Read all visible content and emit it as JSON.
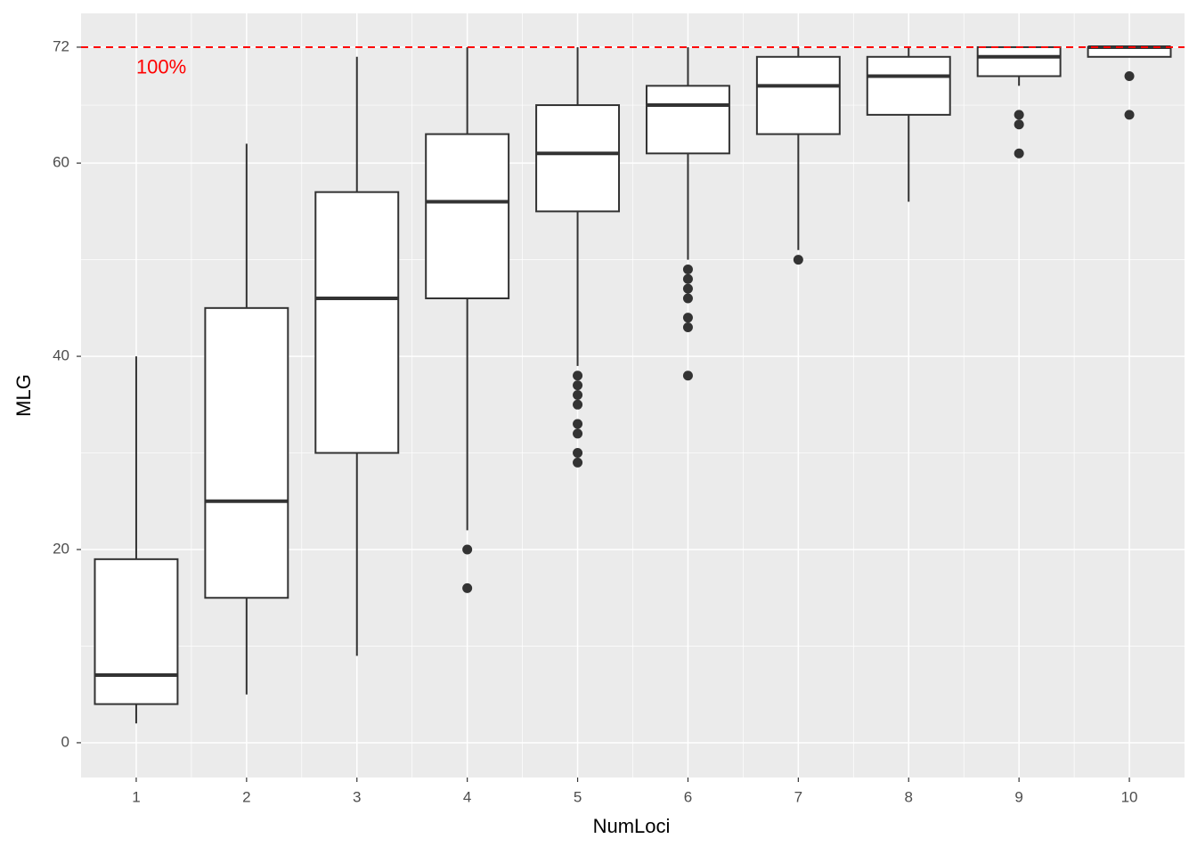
{
  "chart_data": {
    "type": "box",
    "x_label": "NumLoci",
    "y_label": "MLG",
    "categories": [
      "1",
      "2",
      "3",
      "4",
      "5",
      "6",
      "7",
      "8",
      "9",
      "10"
    ],
    "boxes": [
      {
        "low": 2,
        "q1": 4,
        "median": 7,
        "q3": 19,
        "high": 40,
        "outliers": []
      },
      {
        "low": 5,
        "q1": 15,
        "median": 25,
        "q3": 45,
        "high": 62,
        "outliers": []
      },
      {
        "low": 9,
        "q1": 30,
        "median": 46,
        "q3": 57,
        "high": 71,
        "outliers": []
      },
      {
        "low": 22,
        "q1": 46,
        "median": 56,
        "q3": 63,
        "high": 72,
        "outliers": [
          20,
          16
        ]
      },
      {
        "low": 39,
        "q1": 55,
        "median": 61,
        "q3": 66,
        "high": 72,
        "outliers": [
          38,
          37,
          36,
          35,
          33,
          32,
          30,
          29
        ]
      },
      {
        "low": 50,
        "q1": 61,
        "median": 66,
        "q3": 68,
        "high": 72,
        "outliers": [
          49,
          48,
          47,
          46,
          44,
          43,
          38
        ]
      },
      {
        "low": 51,
        "q1": 63,
        "median": 68,
        "q3": 71,
        "high": 72,
        "outliers": [
          50
        ]
      },
      {
        "low": 56,
        "q1": 65,
        "median": 69,
        "q3": 71,
        "high": 72,
        "outliers": []
      },
      {
        "low": 68,
        "q1": 69,
        "median": 71,
        "q3": 72,
        "high": 72,
        "outliers": [
          65,
          64,
          61
        ]
      },
      {
        "low": 71,
        "q1": 71,
        "median": 72,
        "q3": 72,
        "high": 72,
        "outliers": [
          69,
          65
        ]
      }
    ],
    "color": "#ffffff",
    "line_color": "#333333",
    "ylim": [
      -3.6,
      75.5
    ],
    "yticks": [
      0,
      20,
      40,
      60,
      72
    ],
    "grid": true,
    "hline": {
      "value": 72,
      "color": "#ff0000",
      "dashed": true
    },
    "annotation": {
      "text": "100%",
      "x": 0,
      "y": 70,
      "color": "#ff0000"
    }
  }
}
